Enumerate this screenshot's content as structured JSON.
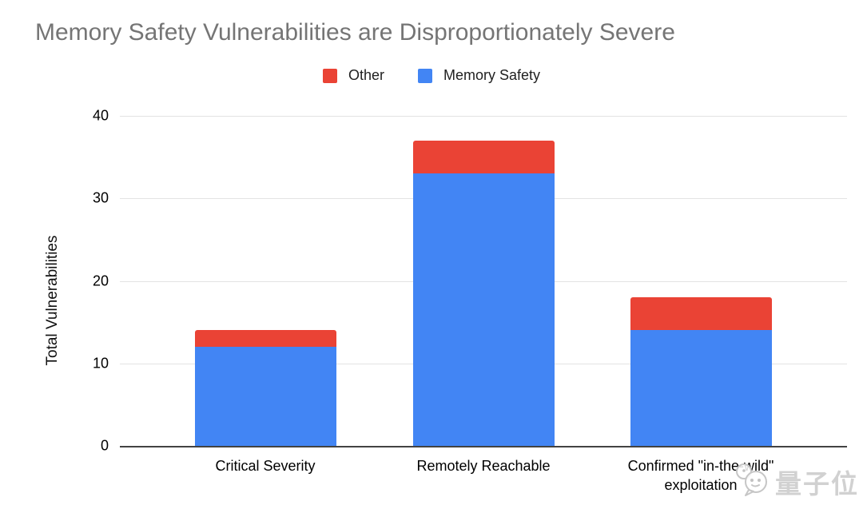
{
  "title": "Memory Safety Vulnerabilities are Disproportionately Severe",
  "legend": [
    {
      "label": "Other",
      "color": "#EA4335"
    },
    {
      "label": "Memory Safety",
      "color": "#4285F4"
    }
  ],
  "ylabel": "Total Vulnerabilities",
  "watermark": {
    "text": "量子位",
    "icon": "qbitai-chat-bubbles-logo"
  },
  "chart_data": {
    "type": "bar",
    "stacked": true,
    "title": "Memory Safety Vulnerabilities are Disproportionately Severe",
    "categories": [
      "Critical Severity",
      "Remotely Reachable",
      "Confirmed \"in-the-wild\" exploitation"
    ],
    "series": [
      {
        "name": "Memory Safety",
        "color": "#4285F4",
        "values": [
          12,
          33,
          14
        ]
      },
      {
        "name": "Other",
        "color": "#EA4335",
        "values": [
          2,
          4,
          4
        ]
      }
    ],
    "totals": [
      14,
      37,
      18
    ],
    "xlabel": "",
    "ylabel": "Total Vulnerabilities",
    "ylim": [
      0,
      40
    ],
    "yticks": [
      0,
      10,
      20,
      30,
      40
    ],
    "grid": true,
    "legend_position": "top"
  }
}
